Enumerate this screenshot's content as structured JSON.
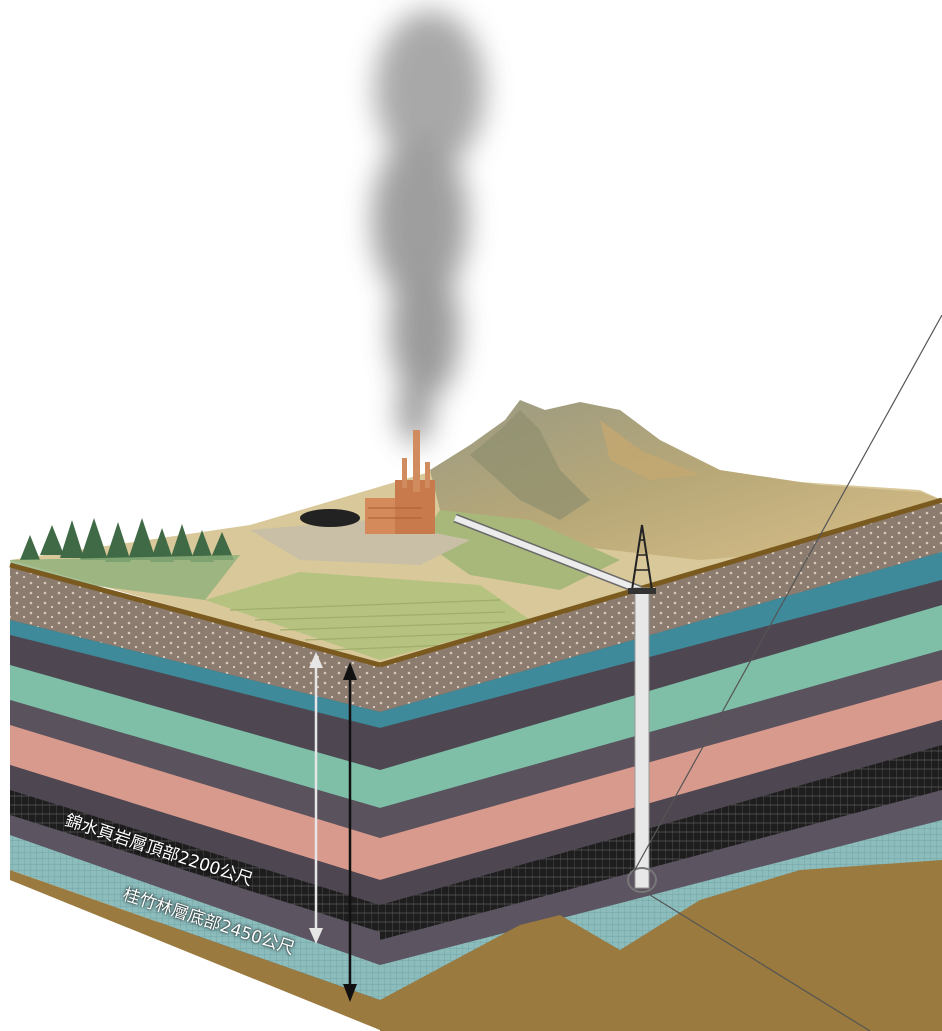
{
  "labels": {
    "top_depth": "錦水頁岩層頂部2200公尺",
    "bottom_depth": "桂竹林層底部2450公尺"
  },
  "colors": {
    "sky": "#ffffff",
    "smoke": "#8a8a8a",
    "gravel": "#8a7a6e",
    "shale_dark": "#4e4650",
    "teal": "#7fbfa8",
    "pink": "#d99a8e",
    "coal": "#2a2a2a",
    "reservoir": "#8ab8b8",
    "pipe": "#e6e6e6"
  },
  "icons": [
    "plant-icon",
    "drilling-rig-icon",
    "tree-icon"
  ]
}
